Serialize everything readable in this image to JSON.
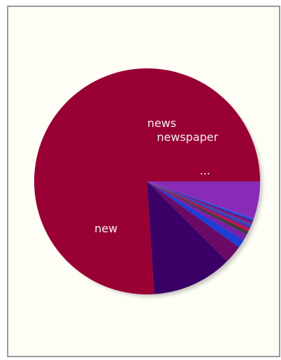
{
  "chart_data": {
    "type": "pie",
    "title": "",
    "slices": [
      {
        "label": "new",
        "value": 76.0,
        "color": "#990033",
        "show_label": true
      },
      {
        "label": "news",
        "value": 11.5,
        "color": "#3a0066",
        "show_label": true
      },
      {
        "label": "",
        "value": 2.6,
        "color": "#6a0a66",
        "show_label": false
      },
      {
        "label": "",
        "value": 1.2,
        "color": "#1e3cd6",
        "show_label": false
      },
      {
        "label": "",
        "value": 0.9,
        "color": "#7a1fa8",
        "show_label": false
      },
      {
        "label": "",
        "value": 0.5,
        "color": "#3c3c3c",
        "show_label": false
      },
      {
        "label": "",
        "value": 0.4,
        "color": "#c0104a",
        "show_label": false
      },
      {
        "label": "",
        "value": 0.4,
        "color": "#5a2a99",
        "show_label": false
      },
      {
        "label": "",
        "value": 0.3,
        "color": "#2a4ac8",
        "show_label": false
      },
      {
        "label": "",
        "value": 0.3,
        "color": "#8e1c72",
        "show_label": false
      },
      {
        "label": "",
        "value": 0.3,
        "color": "#4b1b8f",
        "show_label": false
      },
      {
        "label": "",
        "value": 0.3,
        "color": "#3050e0",
        "show_label": false
      },
      {
        "label": "...",
        "value": 5.3,
        "color": "#8a2bb8",
        "show_label": true
      }
    ],
    "extra_labels": [
      {
        "label": "newspaper"
      }
    ],
    "start": "3 o'clock",
    "direction": "counterclockwise",
    "legend": "none"
  }
}
